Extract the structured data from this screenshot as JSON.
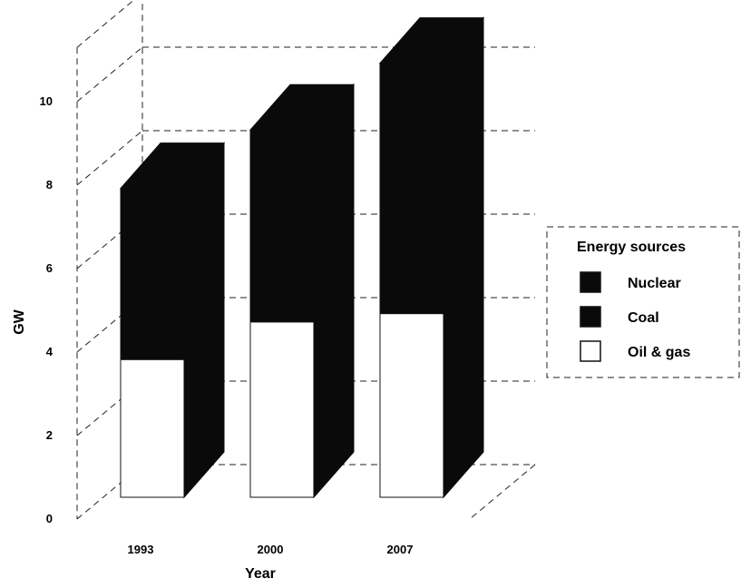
{
  "chart_data": {
    "type": "bar",
    "stacked": true,
    "three_d": true,
    "title": "",
    "xlabel": "Year",
    "ylabel": "GW",
    "categories": [
      "1993",
      "2000",
      "2007"
    ],
    "ylim": [
      0,
      10
    ],
    "y_ticks": [
      "0",
      "2",
      "4",
      "6",
      "8",
      "10"
    ],
    "grid": true,
    "legend_position": "right",
    "legend_title": "Energy sources",
    "series": [
      {
        "name": "Oil & gas",
        "values": [
          3.3,
          4.2,
          4.4
        ],
        "color": "#ffffff"
      },
      {
        "name": "Coal",
        "values": [
          0,
          0,
          0
        ],
        "color": "#0a0a0a"
      },
      {
        "name": "Nuclear",
        "values": [
          4.1,
          4.6,
          6.0
        ],
        "color": "#0a0a0a"
      }
    ]
  }
}
